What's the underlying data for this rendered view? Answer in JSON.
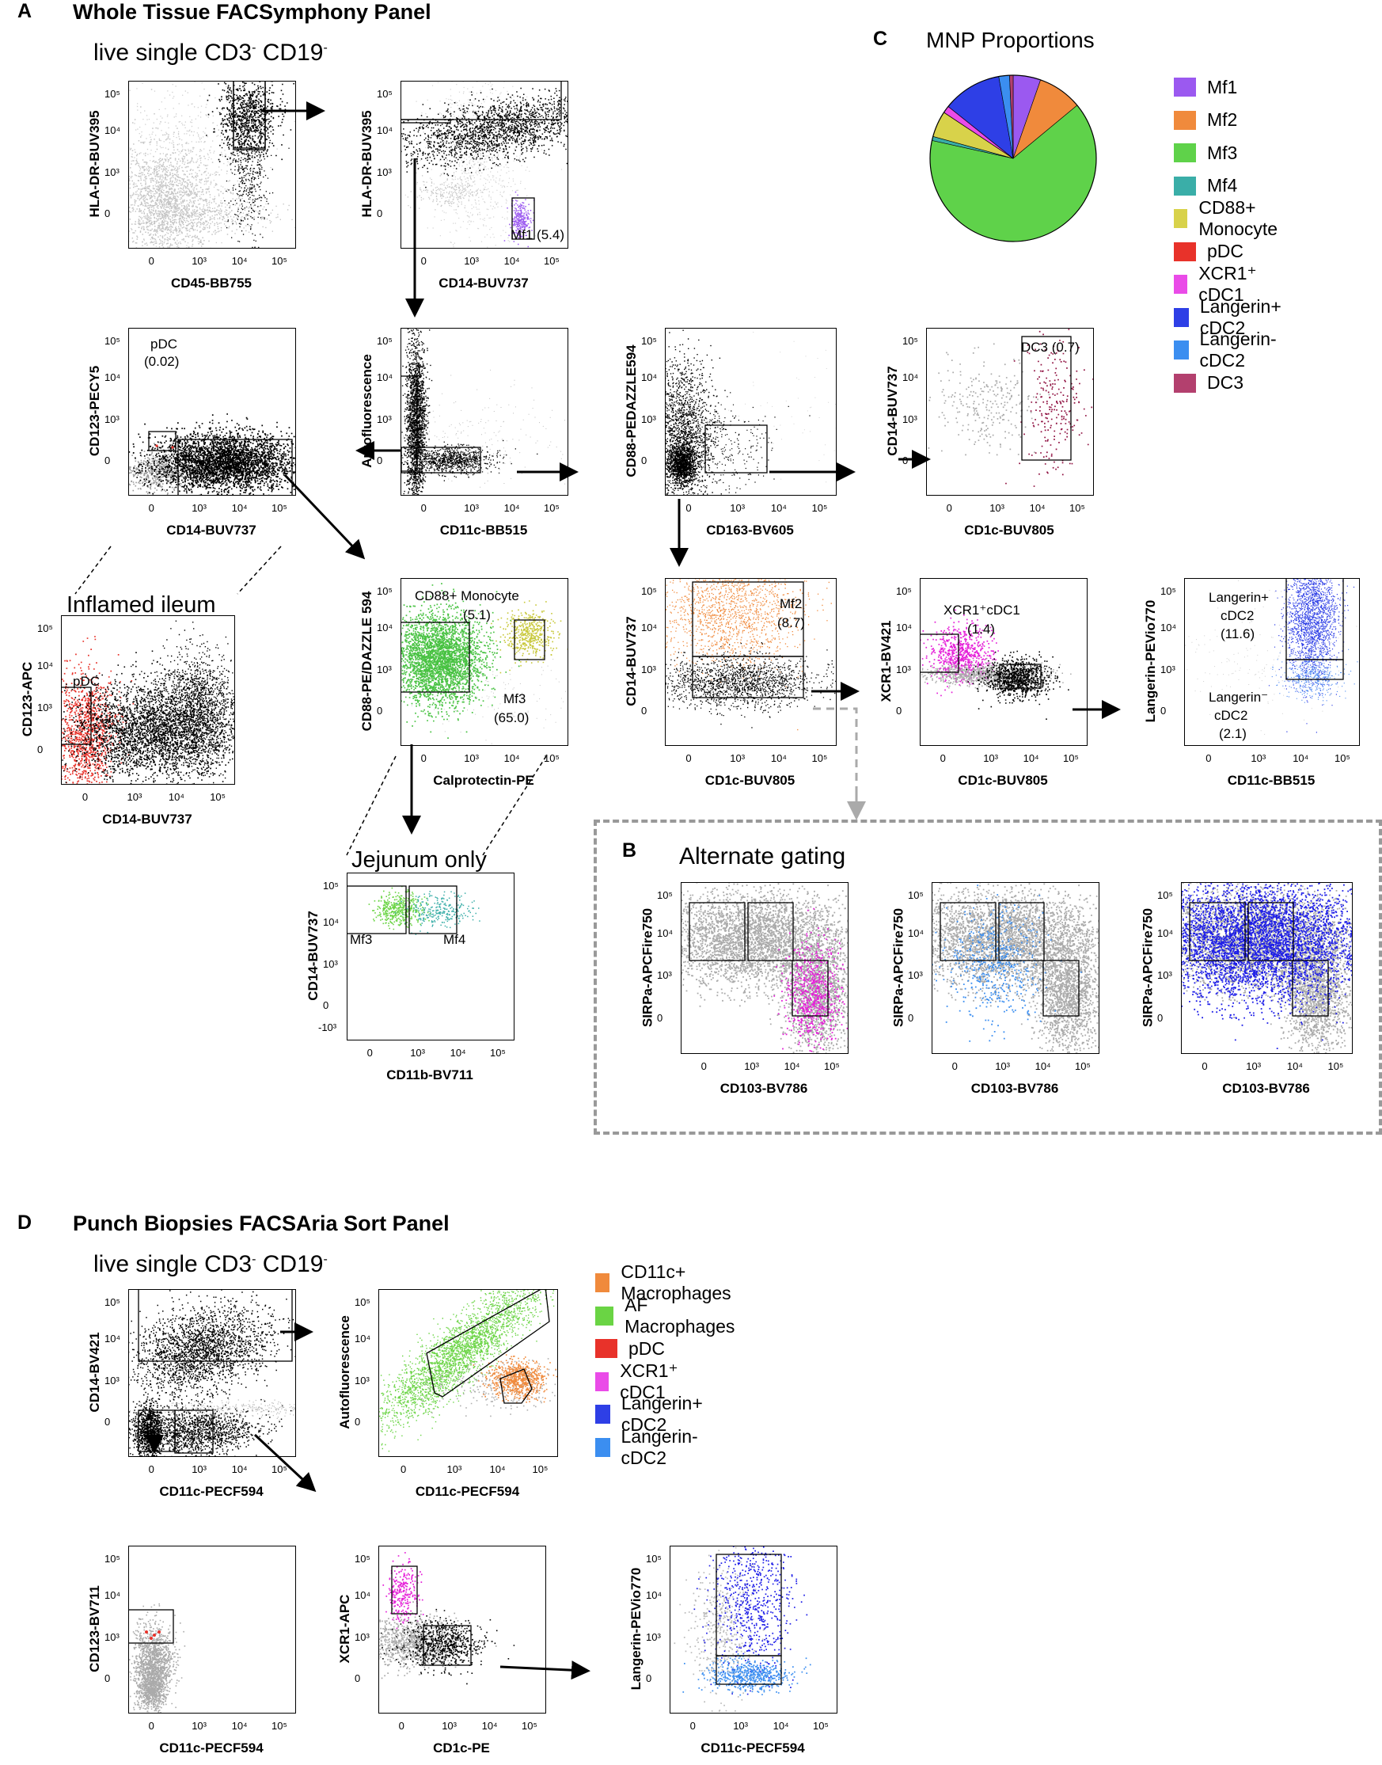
{
  "panels": {
    "A": {
      "letter": "A",
      "title": "Whole Tissue FACSymphony Panel",
      "subtitle_main": "live single CD3",
      "subtitle_mid": " CD19",
      "sup_minus": "-"
    },
    "B": {
      "letter": "B",
      "title": "Alternate gating"
    },
    "C": {
      "letter": "C",
      "title": "MNP Proportions"
    },
    "D": {
      "letter": "D",
      "title": "Punch Biopsies FACSAria Sort Panel",
      "subtitle_main": "live single CD3",
      "subtitle_mid": " CD19",
      "sup_minus": "-"
    }
  },
  "section_labels": {
    "inflamed": "Inflamed ileum",
    "jejunum": "Jejunum only"
  },
  "ticks": {
    "e5": "10⁵",
    "e4": "10⁴",
    "e3": "10³",
    "zero": "0",
    "neg3": "-10³"
  },
  "plots": [
    {
      "id": "p1",
      "x": "CD45-BB755",
      "y": "HLA-DR-BUV395",
      "gates": []
    },
    {
      "id": "p2",
      "x": "CD14-BUV737",
      "y": "HLA-DR-BUV395",
      "gates": [
        "Mf1 (5.4)"
      ]
    },
    {
      "id": "p3",
      "x": "CD14-BUV737",
      "y": "CD123-PECY5",
      "gates": [
        "pDC",
        "(0.02)"
      ]
    },
    {
      "id": "p4",
      "x": "CD11c-BB515",
      "y": "Autofluorescence",
      "gates": []
    },
    {
      "id": "p5",
      "x": "CD163-BV605",
      "y": "CD88-PEDAZZLE594",
      "gates": []
    },
    {
      "id": "p6",
      "x": "CD1c-BUV805",
      "y": "CD14-BUV737",
      "gates": [
        "DC3 (0.7)"
      ]
    },
    {
      "id": "p7",
      "x": "CD14-BUV737",
      "y": "CD123-APC",
      "gates": [
        "pDC"
      ]
    },
    {
      "id": "p8",
      "x": "Calprotectin-PE",
      "y": "CD88-PE/DAZZLE 594",
      "gates": [
        "CD88+ Monocyte",
        "(5.1)",
        "Mf3",
        "(65.0)"
      ]
    },
    {
      "id": "p9",
      "x": "CD1c-BUV805",
      "y": "CD14-BUV737",
      "gates": [
        "Mf2",
        "(8.7)"
      ]
    },
    {
      "id": "p10",
      "x": "CD1c-BUV805",
      "y": "XCR1-BV421",
      "gates": [
        "XCR1⁺cDC1",
        "(1.4)"
      ]
    },
    {
      "id": "p11",
      "x": "CD11c-BB515",
      "y": "Langerin-PEVio770",
      "gates": [
        "Langerin+",
        "cDC2",
        "(11.6)",
        "Langerin⁻",
        "cDC2",
        "(2.1)"
      ]
    },
    {
      "id": "p12",
      "x": "CD11b-BV711",
      "y": "CD14-BUV737",
      "gates": [
        "Mf3",
        "Mf4"
      ]
    },
    {
      "id": "p13",
      "x": "CD103-BV786",
      "y": "SIRPa-APCFire750",
      "gates": []
    },
    {
      "id": "p14",
      "x": "CD103-BV786",
      "y": "SIRPa-APCFire750",
      "gates": []
    },
    {
      "id": "p15",
      "x": "CD103-BV786",
      "y": "SIRPa-APCFire750",
      "gates": []
    },
    {
      "id": "p16",
      "x": "CD11c-PECF594",
      "y": "CD14-BV421",
      "gates": []
    },
    {
      "id": "p17",
      "x": "CD11c-PECF594",
      "y": "Autofluorescence",
      "gates": []
    },
    {
      "id": "p18",
      "x": "CD11c-PECF594",
      "y": "CD123-BV711",
      "gates": []
    },
    {
      "id": "p19",
      "x": "CD1c-PE",
      "y": "XCR1-APC",
      "gates": []
    },
    {
      "id": "p20",
      "x": "CD11c-PECF594",
      "y": "Langerin-PEVio770",
      "gates": []
    }
  ],
  "legend_C": [
    {
      "label": "Mf1",
      "color": "#9b59f0"
    },
    {
      "label": "Mf2",
      "color": "#f08a3c"
    },
    {
      "label": "Mf3",
      "color": "#5fd24a"
    },
    {
      "label": "Mf4",
      "color": "#3aaea8"
    },
    {
      "label": "CD88+ Monocyte",
      "color": "#d8d24a"
    },
    {
      "label": "pDC",
      "color": "#e8322a"
    },
    {
      "label": "XCR1⁺ cDC1",
      "color": "#ea4be8"
    },
    {
      "label": "Langerin+ cDC2",
      "color": "#2e3fe6"
    },
    {
      "label": "Langerin- cDC2",
      "color": "#3b8ef0"
    },
    {
      "label": "DC3",
      "color": "#b3406e"
    }
  ],
  "legend_D": [
    {
      "label": "CD11c+ Macrophages",
      "color": "#f08a3c"
    },
    {
      "label": "AF Macrophages",
      "color": "#6ad444"
    },
    {
      "label": "pDC",
      "color": "#e8322a"
    },
    {
      "label": "XCR1⁺  cDC1",
      "color": "#ea4be8"
    },
    {
      "label": "Langerin+ cDC2",
      "color": "#2e3fe6"
    },
    {
      "label": "Langerin- cDC2",
      "color": "#3b8ef0"
    }
  ],
  "chart_data": {
    "type": "pie",
    "title": "MNP Proportions",
    "categories": [
      "Mf1",
      "Mf2",
      "Mf3",
      "Mf4",
      "CD88+ Monocyte",
      "pDC",
      "XCR1+ cDC1",
      "Langerin+ cDC2",
      "Langerin- cDC2",
      "DC3"
    ],
    "values": [
      5.4,
      8.7,
      65.0,
      0.8,
      5.1,
      0.02,
      1.4,
      11.6,
      2.1,
      0.7
    ]
  }
}
